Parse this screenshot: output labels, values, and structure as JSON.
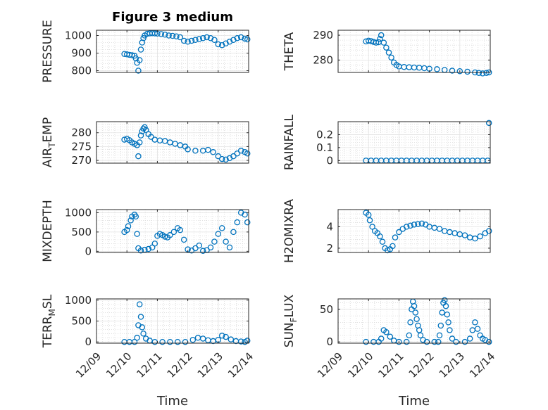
{
  "figure": {
    "title": "Figure 3 medium",
    "xlabel": "Time"
  },
  "chart_data": [
    {
      "type": "scatter",
      "ylabel": "PRESSURE",
      "xlim": [
        "12/09",
        "12/14"
      ],
      "ylim": [
        790,
        1030
      ],
      "yticks": [
        800,
        900,
        1000
      ],
      "x": [
        "12/09 22:00",
        "12/10 00:00",
        "12/10 02:00",
        "12/10 04:00",
        "12/10 06:00",
        "12/10 07:00",
        "12/10 08:00",
        "12/10 09:00",
        "12/10 10:00",
        "12/10 11:00",
        "12/10 12:00",
        "12/10 13:00",
        "12/10 14:00",
        "12/10 16:00",
        "12/10 18:00",
        "12/10 20:00",
        "12/10 22:00",
        "12/11 00:00",
        "12/11 03:00",
        "12/11 06:00",
        "12/11 09:00",
        "12/11 12:00",
        "12/11 15:00",
        "12/11 18:00",
        "12/11 21:00",
        "12/12 00:00",
        "12/12 03:00",
        "12/12 06:00",
        "12/12 09:00",
        "12/12 12:00",
        "12/12 15:00",
        "12/12 18:00",
        "12/12 21:00",
        "12/13 00:00",
        "12/13 03:00",
        "12/13 06:00",
        "12/13 09:00",
        "12/13 12:00",
        "12/13 15:00",
        "12/13 18:00",
        "12/13 21:00",
        "12/13 23:00"
      ],
      "y": [
        895,
        893,
        890,
        888,
        885,
        870,
        845,
        800,
        860,
        920,
        960,
        985,
        1000,
        1010,
        1012,
        1013,
        1012,
        1011,
        1008,
        1005,
        1000,
        998,
        995,
        990,
        970,
        965,
        970,
        975,
        980,
        985,
        990,
        985,
        975,
        950,
        945,
        955,
        965,
        975,
        985,
        990,
        982,
        978
      ]
    },
    {
      "type": "scatter",
      "ylabel": "THETA",
      "xlim": [
        "12/09",
        "12/14"
      ],
      "ylim": [
        275,
        292
      ],
      "yticks": [
        280,
        290
      ],
      "x": [
        "12/09 22:00",
        "12/10 00:00",
        "12/10 02:00",
        "12/10 04:00",
        "12/10 06:00",
        "12/10 08:00",
        "12/10 09:00",
        "12/10 10:00",
        "12/10 12:00",
        "12/10 14:00",
        "12/10 16:00",
        "12/10 18:00",
        "12/10 20:00",
        "12/10 22:00",
        "12/11 00:00",
        "12/11 04:00",
        "12/11 08:00",
        "12/11 12:00",
        "12/11 16:00",
        "12/11 20:00",
        "12/12 00:00",
        "12/12 06:00",
        "12/12 12:00",
        "12/12 18:00",
        "12/13 00:00",
        "12/13 06:00",
        "12/13 12:00",
        "12/13 15:00",
        "12/13 18:00",
        "12/13 21:00",
        "12/13 23:00"
      ],
      "y": [
        287.5,
        287.8,
        287.6,
        287.3,
        287.0,
        287.2,
        288.5,
        290.0,
        287.0,
        285.0,
        283.0,
        281.0,
        279.0,
        278.0,
        277.4,
        277.2,
        277.1,
        277.0,
        276.9,
        276.7,
        276.5,
        276.3,
        276.0,
        275.7,
        275.5,
        275.3,
        275.0,
        274.8,
        274.6,
        274.8,
        275.0
      ]
    },
    {
      "type": "scatter",
      "ylabel": "AIR_TEMP",
      "xlim": [
        "12/09",
        "12/14"
      ],
      "ylim": [
        269,
        284
      ],
      "yticks": [
        270,
        275,
        280
      ],
      "x": [
        "12/09 22:00",
        "12/10 00:00",
        "12/10 02:00",
        "12/10 04:00",
        "12/10 06:00",
        "12/10 08:00",
        "12/10 09:00",
        "12/10 10:00",
        "12/10 11:00",
        "12/10 12:00",
        "12/10 13:00",
        "12/10 14:00",
        "12/10 15:00",
        "12/10 17:00",
        "12/10 19:00",
        "12/10 22:00",
        "12/11 02:00",
        "12/11 06:00",
        "12/11 10:00",
        "12/11 14:00",
        "12/11 18:00",
        "12/11 22:00",
        "12/12 00:00",
        "12/12 06:00",
        "12/12 12:00",
        "12/12 16:00",
        "12/12 20:00",
        "12/13 00:00",
        "12/13 03:00",
        "12/13 06:00",
        "12/13 09:00",
        "12/13 12:00",
        "12/13 15:00",
        "12/13 18:00",
        "12/13 21:00",
        "12/13 23:00"
      ],
      "y": [
        277.5,
        277.8,
        277.3,
        276.5,
        276.0,
        275.5,
        271.5,
        276.5,
        279.0,
        280.5,
        281.5,
        282.0,
        281.0,
        279.5,
        278.5,
        277.5,
        277.2,
        277.0,
        276.5,
        276.0,
        275.5,
        275.0,
        274.0,
        273.5,
        273.5,
        273.8,
        273.0,
        271.5,
        270.5,
        270.3,
        270.8,
        271.5,
        272.5,
        273.5,
        273.0,
        272.5
      ]
    },
    {
      "type": "scatter",
      "ylabel": "RAINFALL",
      "xlim": [
        "12/09",
        "12/14"
      ],
      "ylim": [
        -0.02,
        0.3
      ],
      "yticks": [
        0,
        0.1,
        0.2
      ],
      "x": [
        "12/09 22:00",
        "12/10 02:00",
        "12/10 06:00",
        "12/10 10:00",
        "12/10 14:00",
        "12/10 18:00",
        "12/10 22:00",
        "12/11 02:00",
        "12/11 06:00",
        "12/11 10:00",
        "12/11 14:00",
        "12/11 18:00",
        "12/11 22:00",
        "12/12 02:00",
        "12/12 06:00",
        "12/12 10:00",
        "12/12 14:00",
        "12/12 18:00",
        "12/12 22:00",
        "12/13 02:00",
        "12/13 06:00",
        "12/13 10:00",
        "12/13 14:00",
        "12/13 18:00",
        "12/13 22:00",
        "12/13 23:00"
      ],
      "y": [
        0,
        0,
        0,
        0,
        0,
        0,
        0,
        0,
        0,
        0,
        0,
        0,
        0,
        0,
        0,
        0,
        0,
        0,
        0,
        0,
        0,
        0,
        0,
        0,
        0,
        0.29
      ]
    },
    {
      "type": "scatter",
      "ylabel": "MIXDEPTH",
      "xlim": [
        "12/09",
        "12/14"
      ],
      "ylim": [
        -30,
        1080
      ],
      "yticks": [
        0,
        500,
        1000
      ],
      "x": [
        "12/09 22:00",
        "12/10 00:00",
        "12/10 01:00",
        "12/10 03:00",
        "12/10 04:00",
        "12/10 06:00",
        "12/10 07:00",
        "12/10 08:00",
        "12/10 09:00",
        "12/10 11:00",
        "12/10 14:00",
        "12/10 17:00",
        "12/10 20:00",
        "12/10 22:00",
        "12/11 00:00",
        "12/11 02:00",
        "12/11 04:00",
        "12/11 06:00",
        "12/11 08:00",
        "12/11 10:00",
        "12/11 13:00",
        "12/11 16:00",
        "12/11 18:00",
        "12/11 21:00",
        "12/12 00:00",
        "12/12 03:00",
        "12/12 06:00",
        "12/12 09:00",
        "12/12 12:00",
        "12/12 15:00",
        "12/12 18:00",
        "12/12 21:00",
        "12/13 00:00",
        "12/13 03:00",
        "12/13 06:00",
        "12/13 09:00",
        "12/13 12:00",
        "12/13 15:00",
        "12/13 18:00",
        "12/13 21:00",
        "12/13 23:00"
      ],
      "y": [
        500,
        550,
        650,
        800,
        900,
        950,
        900,
        450,
        80,
        20,
        40,
        60,
        100,
        200,
        400,
        450,
        420,
        380,
        360,
        420,
        500,
        600,
        550,
        300,
        50,
        20,
        80,
        150,
        10,
        30,
        100,
        250,
        450,
        600,
        250,
        100,
        500,
        750,
        1000,
        950,
        750
      ]
    },
    {
      "type": "scatter",
      "ylabel": "H2OMIXRA",
      "xlim": [
        "12/09",
        "12/14"
      ],
      "ylim": [
        1.6,
        5.6
      ],
      "yticks": [
        2,
        4
      ],
      "x": [
        "12/09 22:00",
        "12/10 00:00",
        "12/10 01:00",
        "12/10 03:00",
        "12/10 05:00",
        "12/10 07:00",
        "12/10 09:00",
        "12/10 11:00",
        "12/10 13:00",
        "12/10 15:00",
        "12/10 17:00",
        "12/10 19:00",
        "12/10 21:00",
        "12/11 00:00",
        "12/11 03:00",
        "12/11 06:00",
        "12/11 09:00",
        "12/11 12:00",
        "12/11 15:00",
        "12/11 18:00",
        "12/11 21:00",
        "12/12 00:00",
        "12/12 04:00",
        "12/12 08:00",
        "12/12 12:00",
        "12/12 16:00",
        "12/12 20:00",
        "12/13 00:00",
        "12/13 04:00",
        "12/13 08:00",
        "12/13 12:00",
        "12/13 16:00",
        "12/13 20:00",
        "12/13 23:00"
      ],
      "y": [
        5.3,
        5.1,
        4.6,
        4.0,
        3.6,
        3.4,
        3.1,
        2.6,
        2.0,
        1.8,
        1.9,
        2.2,
        3.0,
        3.5,
        3.8,
        4.0,
        4.1,
        4.2,
        4.25,
        4.3,
        4.2,
        4.0,
        3.9,
        3.8,
        3.6,
        3.5,
        3.4,
        3.3,
        3.2,
        3.0,
        2.9,
        3.1,
        3.4,
        3.6
      ]
    },
    {
      "type": "scatter",
      "ylabel": "TERR_MSL",
      "xlim": [
        "12/09",
        "12/14"
      ],
      "ylim": [
        -30,
        1030
      ],
      "yticks": [
        0,
        500,
        1000
      ],
      "x": [
        "12/09 22:00",
        "12/10 02:00",
        "12/10 06:00",
        "12/10 08:00",
        "12/10 09:00",
        "12/10 10:00",
        "12/10 11:00",
        "12/10 12:00",
        "12/10 13:00",
        "12/10 15:00",
        "12/10 18:00",
        "12/10 22:00",
        "12/11 04:00",
        "12/11 10:00",
        "12/11 16:00",
        "12/11 22:00",
        "12/12 04:00",
        "12/12 08:00",
        "12/12 12:00",
        "12/12 16:00",
        "12/12 20:00",
        "12/13 00:00",
        "12/13 03:00",
        "12/13 06:00",
        "12/13 10:00",
        "12/13 14:00",
        "12/13 18:00",
        "12/13 21:00",
        "12/13 23:00"
      ],
      "y": [
        0,
        0,
        0,
        100,
        400,
        900,
        600,
        350,
        200,
        80,
        30,
        0,
        0,
        0,
        0,
        0,
        50,
        100,
        80,
        40,
        20,
        50,
        150,
        120,
        60,
        20,
        10,
        0,
        30
      ]
    },
    {
      "type": "scatter",
      "ylabel": "SUN_FLUX",
      "xlim": [
        "12/09",
        "12/14"
      ],
      "ylim": [
        -2,
        66
      ],
      "yticks": [
        0,
        50
      ],
      "x": [
        "12/09 22:00",
        "12/10 04:00",
        "12/10 08:00",
        "12/10 10:00",
        "12/10 12:00",
        "12/10 14:00",
        "12/10 17:00",
        "12/10 20:00",
        "12/11 00:00",
        "12/11 06:00",
        "12/11 08:00",
        "12/11 09:00",
        "12/11 10:00",
        "12/11 11:00",
        "12/11 12:00",
        "12/11 13:00",
        "12/11 14:00",
        "12/11 15:00",
        "12/11 16:00",
        "12/11 17:00",
        "12/11 19:00",
        "12/11 22:00",
        "12/12 04:00",
        "12/12 07:00",
        "12/12 08:00",
        "12/12 09:00",
        "12/12 10:00",
        "12/12 11:00",
        "12/12 12:00",
        "12/12 13:00",
        "12/12 14:00",
        "12/12 15:00",
        "12/12 16:00",
        "12/12 18:00",
        "12/12 21:00",
        "12/13 04:00",
        "12/13 08:00",
        "12/13 10:00",
        "12/13 12:00",
        "12/13 14:00",
        "12/13 16:00",
        "12/13 18:00",
        "12/13 20:00",
        "12/13 23:00"
      ],
      "y": [
        0,
        0,
        0,
        5,
        18,
        15,
        8,
        2,
        0,
        0,
        10,
        30,
        50,
        62,
        55,
        45,
        35,
        25,
        18,
        10,
        3,
        0,
        0,
        0,
        10,
        25,
        45,
        60,
        64,
        55,
        42,
        30,
        18,
        5,
        0,
        0,
        5,
        18,
        30,
        20,
        10,
        5,
        3,
        0
      ]
    }
  ]
}
